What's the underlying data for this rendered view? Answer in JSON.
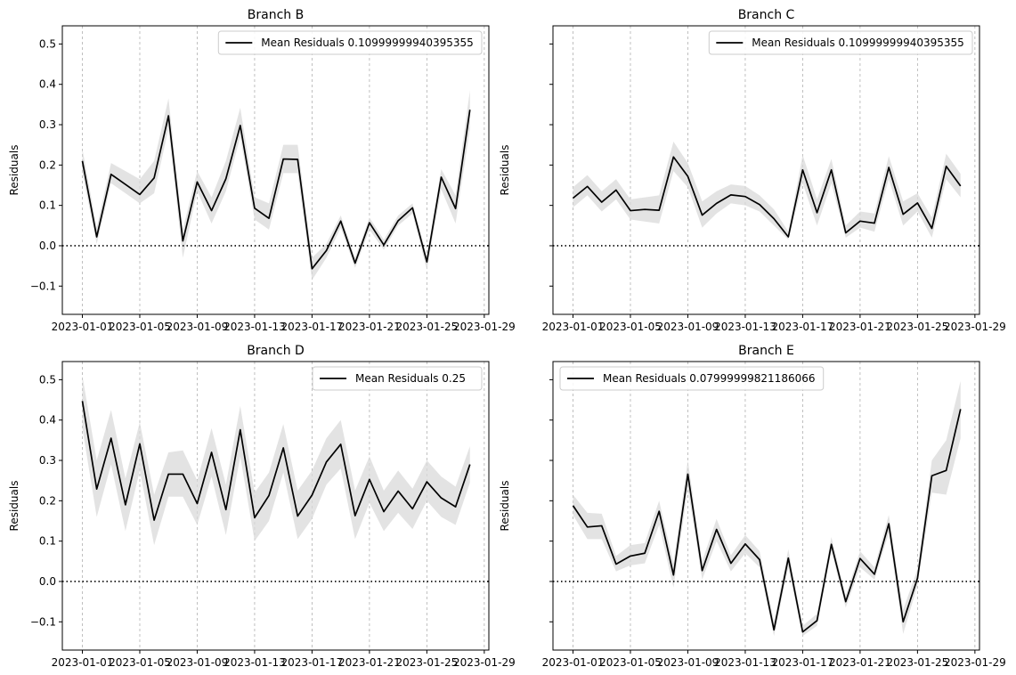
{
  "chart_data": [
    {
      "type": "line",
      "title": "Branch B",
      "xlabel": "",
      "ylabel": "Residuals",
      "ylim": [
        -0.17,
        0.545
      ],
      "grid": "x-dashed",
      "legend_position": "top-right",
      "legend_label": "Mean Residuals 0.10999999940395355",
      "x_ticks": [
        "2023-01-01",
        "2023-01-05",
        "2023-01-09",
        "2023-01-13",
        "2023-01-17",
        "2023-01-21",
        "2023-01-25",
        "2023-01-29"
      ],
      "y_ticks": [
        "0.5",
        "0.4",
        "0.3",
        "0.2",
        "0.1",
        "0.0",
        "−0.1"
      ],
      "x": [
        "2023-01-01",
        "2023-01-02",
        "2023-01-03",
        "2023-01-04",
        "2023-01-05",
        "2023-01-06",
        "2023-01-07",
        "2023-01-08",
        "2023-01-09",
        "2023-01-10",
        "2023-01-11",
        "2023-01-12",
        "2023-01-13",
        "2023-01-14",
        "2023-01-15",
        "2023-01-16",
        "2023-01-17",
        "2023-01-18",
        "2023-01-19",
        "2023-01-20",
        "2023-01-21",
        "2023-01-22",
        "2023-01-23",
        "2023-01-24",
        "2023-01-25",
        "2023-01-26",
        "2023-01-27",
        "2023-01-28"
      ],
      "series": [
        {
          "name": "Mean Residuals 0.10999999940395355",
          "values": [
            0.21,
            0.022,
            0.177,
            0.152,
            0.127,
            0.168,
            0.322,
            0.012,
            0.158,
            0.087,
            0.166,
            0.298,
            0.093,
            0.068,
            0.215,
            0.214,
            -0.057,
            -0.012,
            0.061,
            -0.043,
            0.057,
            0.002,
            0.062,
            0.094,
            -0.04,
            0.17,
            0.092,
            0.337
          ],
          "lower": [
            0.18,
            0.005,
            0.155,
            0.13,
            0.105,
            0.13,
            0.29,
            -0.03,
            0.135,
            0.055,
            0.135,
            0.27,
            0.065,
            0.04,
            0.18,
            0.18,
            -0.085,
            -0.03,
            0.045,
            -0.055,
            0.04,
            -0.01,
            0.05,
            0.08,
            -0.06,
            0.14,
            0.055,
            0.29
          ],
          "upper": [
            0.24,
            0.045,
            0.205,
            0.185,
            0.165,
            0.21,
            0.365,
            0.04,
            0.185,
            0.12,
            0.21,
            0.342,
            0.12,
            0.105,
            0.25,
            0.25,
            -0.03,
            0.005,
            0.075,
            -0.03,
            0.07,
            0.015,
            0.075,
            0.105,
            -0.025,
            0.19,
            0.125,
            0.385
          ],
          "color": "#000000"
        }
      ],
      "reference_line": {
        "y": 0.0,
        "style": "dotted"
      }
    },
    {
      "type": "line",
      "title": "Branch C",
      "xlabel": "",
      "ylabel": "Residuals",
      "ylim": [
        -0.17,
        0.545
      ],
      "grid": "x-dashed",
      "legend_position": "top-right",
      "legend_label": "Mean Residuals 0.10999999940395355",
      "x_ticks": [
        "2023-01-01",
        "2023-01-05",
        "2023-01-09",
        "2023-01-13",
        "2023-01-17",
        "2023-01-21",
        "2023-01-25",
        "2023-01-29"
      ],
      "y_ticks": [],
      "x": [
        "2023-01-01",
        "2023-01-02",
        "2023-01-03",
        "2023-01-04",
        "2023-01-05",
        "2023-01-06",
        "2023-01-07",
        "2023-01-08",
        "2023-01-09",
        "2023-01-10",
        "2023-01-11",
        "2023-01-12",
        "2023-01-13",
        "2023-01-14",
        "2023-01-15",
        "2023-01-16",
        "2023-01-17",
        "2023-01-18",
        "2023-01-19",
        "2023-01-20",
        "2023-01-21",
        "2023-01-22",
        "2023-01-23",
        "2023-01-24",
        "2023-01-25",
        "2023-01-26",
        "2023-01-27",
        "2023-01-28"
      ],
      "series": [
        {
          "name": "Mean Residuals 0.10999999940395355",
          "values": [
            0.118,
            0.147,
            0.108,
            0.138,
            0.087,
            0.09,
            0.088,
            0.22,
            0.172,
            0.076,
            0.105,
            0.126,
            0.122,
            0.102,
            0.067,
            0.022,
            0.188,
            0.082,
            0.188,
            0.032,
            0.061,
            0.056,
            0.194,
            0.078,
            0.106,
            0.043,
            0.197,
            0.148
          ],
          "lower": [
            0.095,
            0.125,
            0.085,
            0.115,
            0.065,
            0.06,
            0.055,
            0.185,
            0.145,
            0.045,
            0.08,
            0.105,
            0.1,
            0.085,
            0.05,
            0.015,
            0.155,
            0.05,
            0.155,
            0.02,
            0.045,
            0.035,
            0.165,
            0.05,
            0.085,
            0.02,
            0.165,
            0.12
          ],
          "upper": [
            0.145,
            0.175,
            0.135,
            0.165,
            0.115,
            0.12,
            0.125,
            0.258,
            0.205,
            0.11,
            0.135,
            0.152,
            0.148,
            0.125,
            0.09,
            0.035,
            0.225,
            0.115,
            0.215,
            0.05,
            0.085,
            0.08,
            0.222,
            0.11,
            0.13,
            0.07,
            0.228,
            0.178
          ],
          "color": "#000000"
        }
      ],
      "reference_line": {
        "y": 0.0,
        "style": "dotted"
      }
    },
    {
      "type": "line",
      "title": "Branch D",
      "xlabel": "",
      "ylabel": "Residuals",
      "ylim": [
        -0.17,
        0.545
      ],
      "grid": "x-dashed",
      "legend_position": "top-right",
      "legend_label": "Mean Residuals 0.25",
      "x_ticks": [
        "2023-01-01",
        "2023-01-05",
        "2023-01-09",
        "2023-01-13",
        "2023-01-17",
        "2023-01-21",
        "2023-01-25",
        "2023-01-29"
      ],
      "y_ticks": [
        "0.5",
        "0.4",
        "0.3",
        "0.2",
        "0.1",
        "0.0",
        "−0.1"
      ],
      "x": [
        "2023-01-01",
        "2023-01-02",
        "2023-01-03",
        "2023-01-04",
        "2023-01-05",
        "2023-01-06",
        "2023-01-07",
        "2023-01-08",
        "2023-01-09",
        "2023-01-10",
        "2023-01-11",
        "2023-01-12",
        "2023-01-13",
        "2023-01-14",
        "2023-01-15",
        "2023-01-16",
        "2023-01-17",
        "2023-01-18",
        "2023-01-19",
        "2023-01-20",
        "2023-01-21",
        "2023-01-22",
        "2023-01-23",
        "2023-01-24",
        "2023-01-25",
        "2023-01-26",
        "2023-01-27",
        "2023-01-28"
      ],
      "series": [
        {
          "name": "Mean Residuals 0.25",
          "values": [
            0.447,
            0.229,
            0.355,
            0.19,
            0.341,
            0.152,
            0.266,
            0.266,
            0.193,
            0.32,
            0.178,
            0.376,
            0.158,
            0.213,
            0.331,
            0.162,
            0.214,
            0.296,
            0.34,
            0.163,
            0.253,
            0.173,
            0.224,
            0.18,
            0.247,
            0.207,
            0.185,
            0.29
          ],
          "lower": [
            0.38,
            0.16,
            0.29,
            0.125,
            0.275,
            0.09,
            0.21,
            0.21,
            0.14,
            0.26,
            0.115,
            0.31,
            0.1,
            0.15,
            0.27,
            0.105,
            0.155,
            0.24,
            0.28,
            0.105,
            0.195,
            0.125,
            0.17,
            0.13,
            0.2,
            0.16,
            0.14,
            0.245
          ],
          "upper": [
            0.51,
            0.3,
            0.425,
            0.255,
            0.395,
            0.215,
            0.32,
            0.325,
            0.25,
            0.38,
            0.24,
            0.435,
            0.22,
            0.27,
            0.39,
            0.225,
            0.275,
            0.355,
            0.4,
            0.225,
            0.31,
            0.225,
            0.275,
            0.23,
            0.3,
            0.26,
            0.235,
            0.335
          ],
          "color": "#000000"
        }
      ],
      "reference_line": {
        "y": 0.0,
        "style": "dotted"
      }
    },
    {
      "type": "line",
      "title": "Branch E",
      "xlabel": "",
      "ylabel": "Residuals",
      "ylim": [
        -0.17,
        0.545
      ],
      "grid": "x-dashed",
      "legend_position": "top-left",
      "legend_label": "Mean Residuals 0.07999999821186066",
      "x_ticks": [
        "2023-01-01",
        "2023-01-05",
        "2023-01-09",
        "2023-01-13",
        "2023-01-17",
        "2023-01-21",
        "2023-01-25",
        "2023-01-29"
      ],
      "y_ticks": [],
      "x": [
        "2023-01-01",
        "2023-01-02",
        "2023-01-03",
        "2023-01-04",
        "2023-01-05",
        "2023-01-06",
        "2023-01-07",
        "2023-01-08",
        "2023-01-09",
        "2023-01-10",
        "2023-01-11",
        "2023-01-12",
        "2023-01-13",
        "2023-01-14",
        "2023-01-15",
        "2023-01-16",
        "2023-01-17",
        "2023-01-18",
        "2023-01-19",
        "2023-01-20",
        "2023-01-21",
        "2023-01-22",
        "2023-01-23",
        "2023-01-24",
        "2023-01-25",
        "2023-01-26",
        "2023-01-27",
        "2023-01-28"
      ],
      "series": [
        {
          "name": "Mean Residuals 0.07999999821186066",
          "values": [
            0.188,
            0.135,
            0.138,
            0.043,
            0.063,
            0.07,
            0.174,
            0.016,
            0.266,
            0.027,
            0.129,
            0.045,
            0.093,
            0.054,
            -0.12,
            0.058,
            -0.125,
            -0.097,
            0.092,
            -0.05,
            0.057,
            0.018,
            0.143,
            -0.1,
            0.008,
            0.262,
            0.275,
            0.427
          ],
          "lower": [
            0.165,
            0.105,
            0.105,
            0.025,
            0.04,
            0.045,
            0.14,
            -0.015,
            0.23,
            0.005,
            0.1,
            0.025,
            0.07,
            0.035,
            -0.135,
            0.035,
            -0.135,
            -0.11,
            0.075,
            -0.065,
            0.035,
            0.005,
            0.12,
            -0.13,
            -0.01,
            0.22,
            0.215,
            0.355
          ],
          "upper": [
            0.215,
            0.17,
            0.168,
            0.063,
            0.09,
            0.095,
            0.2,
            0.045,
            0.3,
            0.05,
            0.155,
            0.065,
            0.115,
            0.075,
            -0.1,
            0.08,
            -0.11,
            -0.08,
            0.11,
            -0.035,
            0.075,
            0.035,
            0.165,
            -0.07,
            0.03,
            0.3,
            0.35,
            0.497
          ],
          "color": "#000000"
        }
      ],
      "reference_line": {
        "y": 0.0,
        "style": "dotted"
      }
    }
  ]
}
